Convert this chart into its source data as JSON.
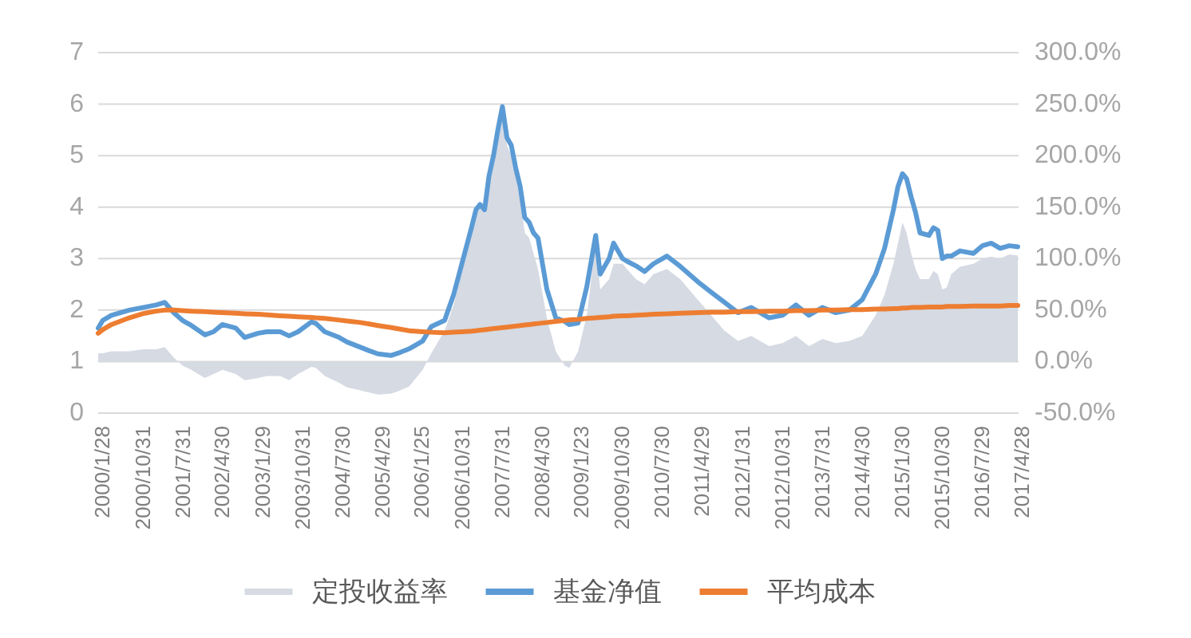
{
  "chart_data": {
    "type": "line",
    "x": [
      "2000-01",
      "2000-02",
      "2000-04",
      "2000-08",
      "2000-11",
      "2001-02",
      "2001-04",
      "2001-06",
      "2001-08",
      "2001-10",
      "2002-01",
      "2002-03",
      "2002-05",
      "2002-08",
      "2002-10",
      "2003-01",
      "2003-03",
      "2003-06",
      "2003-08",
      "2003-10",
      "2004-01",
      "2004-02",
      "2004-04",
      "2004-07",
      "2004-09",
      "2004-12",
      "2005-02",
      "2005-04",
      "2005-07",
      "2005-09",
      "2005-11",
      "2006-02",
      "2006-04",
      "2006-07",
      "2006-09",
      "2006-11",
      "2007-01",
      "2007-02",
      "2007-03",
      "2007-04",
      "2007-05",
      "2007-06",
      "2007-07",
      "2007-08",
      "2007-09",
      "2007-10",
      "2007-11",
      "2007-12",
      "2008-01",
      "2008-02",
      "2008-03",
      "2008-04",
      "2008-06",
      "2008-08",
      "2008-10",
      "2008-11",
      "2009-01",
      "2009-03",
      "2009-05",
      "2009-06",
      "2009-08",
      "2009-09",
      "2009-11",
      "2009-12",
      "2010-02",
      "2010-04",
      "2010-06",
      "2010-09",
      "2010-12",
      "2011-04",
      "2011-07",
      "2011-10",
      "2012-01",
      "2012-04",
      "2012-08",
      "2012-11",
      "2013-02",
      "2013-05",
      "2013-08",
      "2013-11",
      "2014-02",
      "2014-05",
      "2014-08",
      "2014-10",
      "2014-12",
      "2015-01",
      "2015-02",
      "2015-03",
      "2015-04",
      "2015-05",
      "2015-06",
      "2015-08",
      "2015-09",
      "2015-10",
      "2015-11",
      "2015-12",
      "2016-01",
      "2016-03",
      "2016-06",
      "2016-08",
      "2016-10",
      "2016-12",
      "2017-02",
      "2017-04"
    ],
    "series": [
      {
        "name": "定投收益率",
        "type": "area",
        "axis": "y2",
        "color": "#d5dae3",
        "values": [
          8,
          8,
          10,
          10,
          12,
          12,
          14,
          4,
          -4,
          -8,
          -16,
          -12,
          -8,
          -12,
          -18,
          -16,
          -14,
          -14,
          -18,
          -12,
          -5,
          -6,
          -14,
          -20,
          -25,
          -28,
          -30,
          -32,
          -31,
          -28,
          -24,
          -8,
          8,
          30,
          55,
          90,
          130,
          150,
          155,
          148,
          185,
          205,
          225,
          250,
          210,
          200,
          178,
          160,
          125,
          120,
          105,
          90,
          42,
          10,
          -4,
          -6,
          10,
          45,
          115,
          70,
          80,
          95,
          95,
          90,
          80,
          75,
          85,
          90,
          80,
          60,
          45,
          30,
          20,
          25,
          15,
          18,
          25,
          15,
          22,
          18,
          20,
          25,
          45,
          65,
          95,
          115,
          135,
          125,
          105,
          90,
          80,
          80,
          88,
          85,
          70,
          72,
          85,
          92,
          95,
          100,
          102,
          100,
          104,
          103
        ]
      },
      {
        "name": "基金净值",
        "color": "#5b9bd5",
        "values": [
          1.65,
          1.8,
          1.9,
          2.0,
          2.05,
          2.1,
          2.15,
          1.95,
          1.8,
          1.7,
          1.52,
          1.58,
          1.72,
          1.65,
          1.47,
          1.55,
          1.58,
          1.58,
          1.5,
          1.58,
          1.77,
          1.74,
          1.58,
          1.48,
          1.38,
          1.28,
          1.21,
          1.15,
          1.12,
          1.18,
          1.25,
          1.4,
          1.68,
          1.8,
          2.3,
          2.95,
          3.6,
          3.95,
          4.05,
          3.95,
          4.6,
          5.0,
          5.5,
          5.95,
          5.35,
          5.2,
          4.75,
          4.4,
          3.8,
          3.7,
          3.5,
          3.4,
          2.4,
          1.85,
          1.78,
          1.72,
          1.75,
          2.45,
          3.45,
          2.7,
          3.0,
          3.3,
          3.0,
          2.95,
          2.86,
          2.75,
          2.9,
          3.05,
          2.85,
          2.55,
          2.35,
          2.15,
          1.95,
          2.05,
          1.85,
          1.9,
          2.1,
          1.9,
          2.05,
          1.95,
          2.0,
          2.2,
          2.7,
          3.2,
          3.95,
          4.4,
          4.65,
          4.55,
          4.2,
          3.9,
          3.5,
          3.45,
          3.6,
          3.55,
          3.0,
          3.05,
          3.05,
          3.15,
          3.1,
          3.25,
          3.3,
          3.2,
          3.25,
          3.23
        ]
      },
      {
        "name": "平均成本",
        "color": "#ed7d31",
        "values": [
          1.55,
          1.62,
          1.72,
          1.85,
          1.93,
          1.98,
          2.0,
          2.0,
          1.99,
          1.98,
          1.97,
          1.96,
          1.95,
          1.94,
          1.93,
          1.92,
          1.91,
          1.89,
          1.88,
          1.87,
          1.86,
          1.85,
          1.84,
          1.81,
          1.79,
          1.76,
          1.73,
          1.7,
          1.66,
          1.63,
          1.6,
          1.58,
          1.57,
          1.56,
          1.57,
          1.58,
          1.59,
          1.6,
          1.61,
          1.62,
          1.63,
          1.64,
          1.65,
          1.66,
          1.67,
          1.68,
          1.69,
          1.7,
          1.71,
          1.72,
          1.73,
          1.74,
          1.76,
          1.78,
          1.8,
          1.81,
          1.82,
          1.84,
          1.85,
          1.86,
          1.87,
          1.88,
          1.89,
          1.89,
          1.9,
          1.91,
          1.92,
          1.93,
          1.94,
          1.95,
          1.96,
          1.96,
          1.97,
          1.97,
          1.98,
          1.98,
          1.99,
          1.99,
          2.0,
          2.0,
          2.01,
          2.01,
          2.02,
          2.02,
          2.03,
          2.03,
          2.04,
          2.04,
          2.05,
          2.05,
          2.05,
          2.06,
          2.06,
          2.06,
          2.06,
          2.07,
          2.07,
          2.07,
          2.08,
          2.08,
          2.08,
          2.08,
          2.09,
          2.09
        ]
      }
    ],
    "xlim": [
      "2000-01",
      "2017-04-28"
    ],
    "xticks": [
      {
        "value": "2000-01-28",
        "label": "2000/1/28"
      },
      {
        "value": "2000-10-31",
        "label": "2000/10/31"
      },
      {
        "value": "2001-07-31",
        "label": "2001/7/31"
      },
      {
        "value": "2002-04-30",
        "label": "2002/4/30"
      },
      {
        "value": "2003-01-29",
        "label": "2003/1/29"
      },
      {
        "value": "2003-10-31",
        "label": "2003/10/31"
      },
      {
        "value": "2004-07-30",
        "label": "2004/7/30"
      },
      {
        "value": "2005-04-29",
        "label": "2005/4/29"
      },
      {
        "value": "2006-01-25",
        "label": "2006/1/25"
      },
      {
        "value": "2006-10-31",
        "label": "2006/10/31"
      },
      {
        "value": "2007-07-31",
        "label": "2007/7/31"
      },
      {
        "value": "2008-04-30",
        "label": "2008/4/30"
      },
      {
        "value": "2009-01-23",
        "label": "2009/1/23"
      },
      {
        "value": "2009-10-30",
        "label": "2009/10/30"
      },
      {
        "value": "2010-07-30",
        "label": "2010/7/30"
      },
      {
        "value": "2011-04-29",
        "label": "2011/4/29"
      },
      {
        "value": "2012-01-31",
        "label": "2012/1/31"
      },
      {
        "value": "2012-10-31",
        "label": "2012/10/31"
      },
      {
        "value": "2013-07-31",
        "label": "2013/7/31"
      },
      {
        "value": "2014-04-30",
        "label": "2014/4/30"
      },
      {
        "value": "2015-01-30",
        "label": "2015/1/30"
      },
      {
        "value": "2015-10-30",
        "label": "2015/10/30"
      },
      {
        "value": "2016-07-29",
        "label": "2016/7/29"
      },
      {
        "value": "2017-04-28",
        "label": "2017/4/28"
      }
    ],
    "ylim": [
      0,
      7
    ],
    "yticks": [
      0,
      1,
      2,
      3,
      4,
      5,
      6,
      7
    ],
    "y2lim": [
      -50,
      300
    ],
    "y2ticks": [
      {
        "value": -50,
        "label": "-50.0%"
      },
      {
        "value": 0,
        "label": "0.0%"
      },
      {
        "value": 50,
        "label": "50.0%"
      },
      {
        "value": 100,
        "label": "100.0%"
      },
      {
        "value": 150,
        "label": "150.0%"
      },
      {
        "value": 200,
        "label": "200.0%"
      },
      {
        "value": 250,
        "label": "250.0%"
      },
      {
        "value": 300,
        "label": "300.0%"
      }
    ],
    "grid": "y",
    "legend": "bottom"
  }
}
